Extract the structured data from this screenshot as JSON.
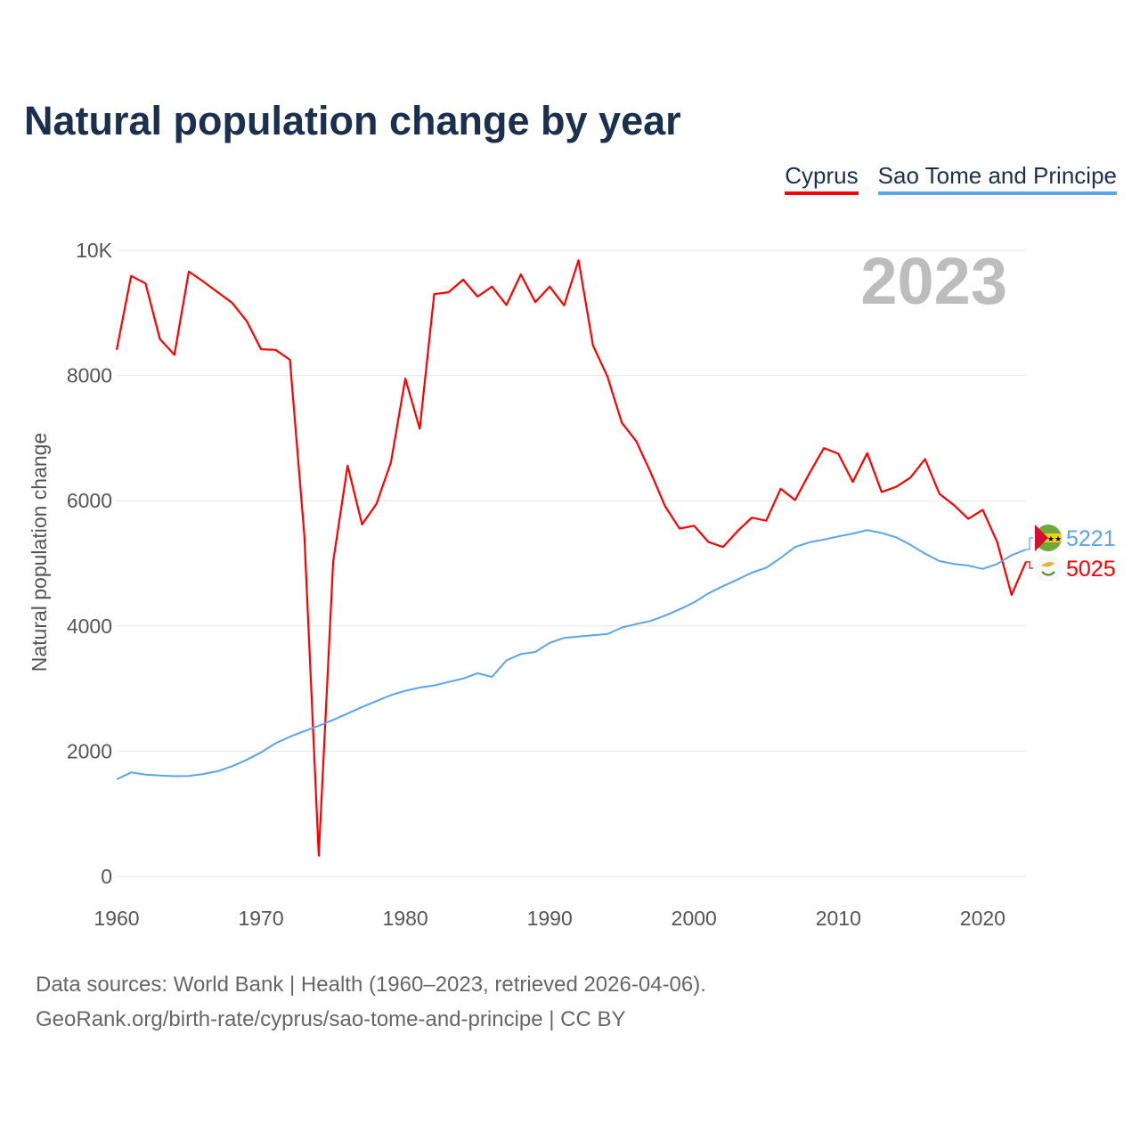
{
  "title": "Natural population change by year",
  "legend": [
    {
      "label": "Cyprus",
      "color": "#ff0000"
    },
    {
      "label": "Sao Tome and Principe",
      "color": "#5aa5ea"
    }
  ],
  "year_watermark": "2023",
  "footer": {
    "line1": "Data sources: World Bank | Health (1960–2023, retrieved 2026-04-06).",
    "line2": "GeoRank.org/birth-rate/cyprus/sao-tome-and-principe | CC BY"
  },
  "chart_data": {
    "type": "line",
    "title": "Natural population change by year",
    "xlabel": "",
    "ylabel": "Natural population change",
    "xlim": [
      1960,
      2023
    ],
    "ylim": [
      0,
      10000
    ],
    "grid": true,
    "legend_position": "top-right",
    "x_ticks": [
      1960,
      1970,
      1980,
      1990,
      2000,
      2010,
      2020
    ],
    "x_tick_labels": [
      "1960",
      "1970",
      "1980",
      "1990",
      "2000",
      "2010",
      "2020"
    ],
    "y_ticks": [
      0,
      2000,
      4000,
      6000,
      8000,
      10000
    ],
    "y_tick_labels": [
      "0",
      "2000",
      "4000",
      "6000",
      "8000",
      "10K"
    ],
    "x": [
      1960,
      1961,
      1962,
      1963,
      1964,
      1965,
      1966,
      1967,
      1968,
      1969,
      1970,
      1971,
      1972,
      1973,
      1974,
      1975,
      1976,
      1977,
      1978,
      1979,
      1980,
      1981,
      1982,
      1983,
      1984,
      1985,
      1986,
      1987,
      1988,
      1989,
      1990,
      1991,
      1992,
      1993,
      1994,
      1995,
      1996,
      1997,
      1998,
      1999,
      2000,
      2001,
      2002,
      2003,
      2004,
      2005,
      2006,
      2007,
      2008,
      2009,
      2010,
      2011,
      2012,
      2013,
      2014,
      2015,
      2016,
      2017,
      2018,
      2019,
      2020,
      2021,
      2022,
      2023
    ],
    "series": [
      {
        "name": "Cyprus",
        "color": "#ff0000",
        "end_label": "5025",
        "values": [
          8410,
          9590,
          9470,
          8580,
          8330,
          9660,
          9500,
          9330,
          9160,
          8870,
          8420,
          8410,
          8250,
          5450,
          330,
          5030,
          6560,
          5620,
          5950,
          6610,
          7950,
          7150,
          9300,
          9330,
          9530,
          9260,
          9420,
          9125,
          9615,
          9170,
          9420,
          9120,
          9840,
          8480,
          7985,
          7245,
          6950,
          6450,
          5910,
          5555,
          5600,
          5340,
          5260,
          5510,
          5730,
          5680,
          6190,
          6010,
          6440,
          6840,
          6750,
          6300,
          6760,
          6140,
          6220,
          6370,
          6665,
          6110,
          5930,
          5710,
          5855,
          5340,
          4495,
          5025
        ]
      },
      {
        "name": "Sao Tome and Principe",
        "color": "#5aa5ea",
        "end_label": "5221",
        "values": [
          1550,
          1660,
          1625,
          1610,
          1600,
          1605,
          1635,
          1680,
          1760,
          1860,
          1980,
          2125,
          2230,
          2320,
          2405,
          2500,
          2600,
          2705,
          2800,
          2895,
          2965,
          3015,
          3050,
          3105,
          3160,
          3245,
          3185,
          3450,
          3550,
          3585,
          3730,
          3810,
          3830,
          3850,
          3870,
          3975,
          4030,
          4080,
          4165,
          4265,
          4375,
          4520,
          4635,
          4740,
          4850,
          4930,
          5085,
          5260,
          5335,
          5380,
          5430,
          5475,
          5530,
          5485,
          5415,
          5295,
          5155,
          5035,
          4990,
          4965,
          4910,
          4990,
          5130,
          5221
        ]
      }
    ]
  }
}
